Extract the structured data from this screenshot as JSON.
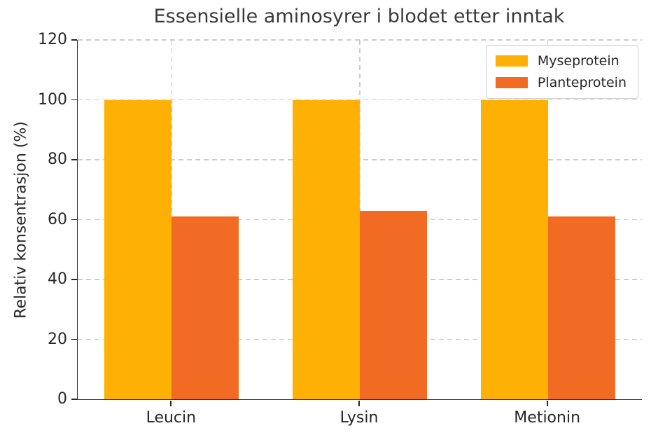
{
  "chart_data": {
    "type": "bar",
    "title": "Essensielle aminosyrer i blodet etter inntak",
    "ylabel": "Relativ konsentrasjon (%)",
    "xlabel": "",
    "categories": [
      "Leucin",
      "Lysin",
      "Metionin"
    ],
    "series": [
      {
        "name": "Myseprotein",
        "color": "#FFB005",
        "values": [
          100,
          100,
          100
        ]
      },
      {
        "name": "Planteprotein",
        "color": "#F26B22",
        "values": [
          61,
          63,
          61
        ]
      }
    ],
    "ylim": [
      0,
      120
    ],
    "yticks": [
      0,
      20,
      40,
      60,
      80,
      100,
      120
    ],
    "grid": {
      "visible": true,
      "style": "dashed",
      "color": "#cccccc",
      "axes": "both"
    },
    "legend": {
      "position": "upper right",
      "entries": [
        "Myseprotein",
        "Planteprotein"
      ]
    }
  },
  "style": {
    "title_color": "#3a3a3a",
    "axis_color": "#262626",
    "spine_color": "#262626",
    "background": "#ffffff"
  }
}
